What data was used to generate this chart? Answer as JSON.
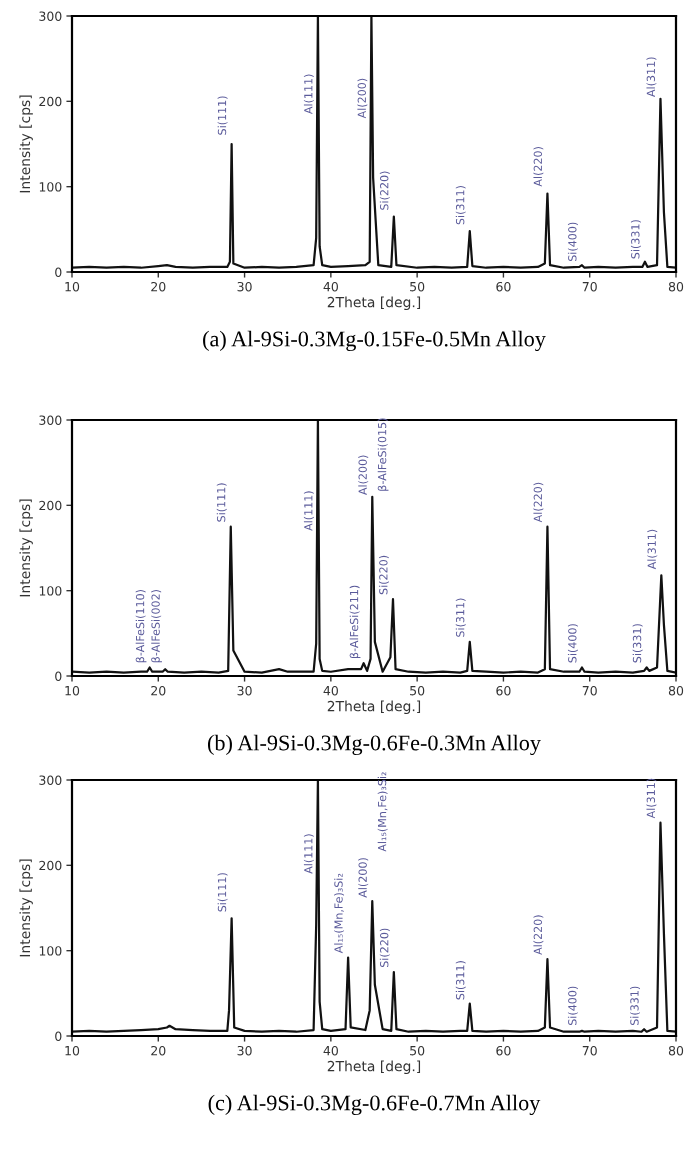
{
  "chart_data": [
    {
      "type": "line",
      "title": "(a) Al-9Si-0.3Mg-0.15Fe-0.5Mn Alloy",
      "xlabel": "2Theta [deg.]",
      "ylabel": "Intensity [cps]",
      "xlim": [
        10,
        80
      ],
      "ylim": [
        0,
        300
      ],
      "xticks": [
        10,
        20,
        30,
        40,
        50,
        60,
        70,
        80
      ],
      "yticks": [
        0,
        100,
        200,
        300
      ],
      "x": [
        10,
        12,
        14,
        16,
        18,
        20,
        21,
        22,
        24,
        26,
        28,
        28.3,
        28.5,
        28.7,
        30,
        32,
        34,
        36,
        38,
        38.3,
        38.5,
        38.7,
        39,
        40,
        42,
        44,
        44.5,
        44.7,
        44.9,
        45.5,
        47,
        47.3,
        47.6,
        50,
        52,
        54,
        55.8,
        56.1,
        56.4,
        58,
        60,
        62,
        64,
        64.8,
        65.1,
        65.4,
        67,
        68.8,
        69.1,
        69.4,
        71,
        73,
        75,
        76.1,
        76.4,
        76.7,
        77.8,
        78.2,
        78.6,
        79,
        80
      ],
      "series": [
        {
          "color": "#111111",
          "values": [
            5,
            6,
            5,
            6,
            5,
            7,
            8,
            6,
            5,
            6,
            6,
            12,
            150,
            10,
            5,
            6,
            5,
            6,
            8,
            40,
            300,
            30,
            8,
            6,
            7,
            8,
            12,
            300,
            110,
            8,
            6,
            65,
            8,
            5,
            6,
            5,
            6,
            48,
            7,
            5,
            6,
            5,
            6,
            10,
            92,
            8,
            5,
            6,
            8,
            5,
            6,
            5,
            6,
            6,
            12,
            6,
            8,
            203,
            70,
            6,
            5
          ]
        }
      ],
      "annotations": [
        {
          "text": "Si(111)",
          "x": 28.5,
          "y": 160
        },
        {
          "text": "Al(111)",
          "x": 38.5,
          "y": 185
        },
        {
          "text": "Al(200)",
          "x": 44.7,
          "y": 180
        },
        {
          "text": "Si(220)",
          "x": 47.3,
          "y": 72
        },
        {
          "text": "Si(311)",
          "x": 56.1,
          "y": 55
        },
        {
          "text": "Al(220)",
          "x": 65.1,
          "y": 100
        },
        {
          "text": "Si(400)",
          "x": 69.1,
          "y": 12
        },
        {
          "text": "Si(331)",
          "x": 76.4,
          "y": 15
        },
        {
          "text": "Al(311)",
          "x": 78.2,
          "y": 205
        }
      ]
    },
    {
      "type": "line",
      "title": "(b) Al-9Si-0.3Mg-0.6Fe-0.3Mn Alloy",
      "xlabel": "2Theta [deg.]",
      "ylabel": "Intensity [cps]",
      "xlim": [
        10,
        80
      ],
      "ylim": [
        0,
        300
      ],
      "xticks": [
        10,
        20,
        30,
        40,
        50,
        60,
        70,
        80
      ],
      "yticks": [
        0,
        100,
        200,
        300
      ],
      "x": [
        10,
        12,
        14,
        16,
        18,
        18.7,
        19,
        19.3,
        20.5,
        20.8,
        21.1,
        23,
        25,
        27,
        28.1,
        28.4,
        28.7,
        30,
        32,
        34,
        35,
        36,
        38,
        38.3,
        38.5,
        38.7,
        39,
        40,
        42,
        43.5,
        43.8,
        44.2,
        44.6,
        44.8,
        45.1,
        46,
        46.9,
        47.2,
        47.5,
        49,
        51,
        53,
        55,
        55.8,
        56.1,
        56.4,
        58,
        60,
        62,
        64,
        64.8,
        65.1,
        65.4,
        67,
        68.8,
        69.1,
        69.4,
        71,
        73,
        75,
        76.3,
        76.6,
        76.9,
        77.8,
        78.3,
        78.6,
        79,
        80
      ],
      "series": [
        {
          "color": "#111111",
          "values": [
            5,
            4,
            5,
            4,
            5,
            5,
            10,
            5,
            5,
            8,
            5,
            4,
            5,
            4,
            6,
            175,
            30,
            5,
            4,
            8,
            5,
            5,
            5,
            38,
            300,
            20,
            6,
            5,
            8,
            8,
            15,
            6,
            20,
            210,
            40,
            5,
            22,
            90,
            8,
            5,
            4,
            5,
            4,
            6,
            40,
            6,
            5,
            4,
            5,
            4,
            8,
            175,
            8,
            5,
            5,
            10,
            5,
            4,
            5,
            4,
            6,
            10,
            6,
            10,
            118,
            60,
            6,
            4
          ]
        }
      ],
      "annotations": [
        {
          "text": "β-AlFeSi(110)",
          "x": 19,
          "y": 15
        },
        {
          "text": "β-AlFeSi(002)",
          "x": 20.8,
          "y": 15
        },
        {
          "text": "Si(111)",
          "x": 28.4,
          "y": 180
        },
        {
          "text": "Al(111)",
          "x": 38.5,
          "y": 170
        },
        {
          "text": "β-AlFeSi(211)",
          "x": 43.8,
          "y": 20
        },
        {
          "text": "Al(200)",
          "x": 44.8,
          "y": 212
        },
        "β-AlFeSi(015)",
        {
          "text": "Si(220)",
          "x": 47.2,
          "y": 95
        },
        {
          "text": "Si(311)",
          "x": 56.1,
          "y": 45
        },
        {
          "text": "Al(220)",
          "x": 65.1,
          "y": 180
        },
        {
          "text": "Si(400)",
          "x": 69.1,
          "y": 15
        },
        {
          "text": "Si(331)",
          "x": 76.6,
          "y": 15
        },
        {
          "text": "Al(311)",
          "x": 78.3,
          "y": 125
        }
      ]
    },
    {
      "type": "line",
      "title": "(c) Al-9Si-0.3Mg-0.6Fe-0.7Mn Alloy",
      "xlabel": "2Theta [deg.]",
      "ylabel": "Intensity [cps]",
      "xlim": [
        10,
        80
      ],
      "ylim": [
        0,
        300
      ],
      "xticks": [
        10,
        20,
        30,
        40,
        50,
        60,
        70,
        80
      ],
      "yticks": [
        0,
        100,
        200,
        300
      ],
      "x": [
        10,
        12,
        14,
        16,
        18,
        20,
        21,
        21.3,
        22,
        24,
        26,
        28,
        28.2,
        28.5,
        28.8,
        30,
        32,
        34,
        36,
        38,
        38.3,
        38.5,
        38.7,
        39,
        40,
        41.7,
        42,
        42.3,
        44,
        44.5,
        44.8,
        45.1,
        46,
        47,
        47.3,
        47.6,
        49,
        51,
        53,
        55,
        55.8,
        56.1,
        56.4,
        58,
        60,
        62,
        64,
        64.8,
        65.1,
        65.4,
        67,
        68.8,
        69.1,
        69.4,
        71,
        73,
        75,
        76,
        76.3,
        76.6,
        77.8,
        78.2,
        78.6,
        79,
        80
      ],
      "series": [
        {
          "color": "#111111",
          "values": [
            5,
            6,
            5,
            6,
            7,
            8,
            10,
            12,
            8,
            7,
            6,
            6,
            30,
            138,
            10,
            6,
            5,
            6,
            5,
            7,
            130,
            300,
            40,
            8,
            6,
            8,
            92,
            10,
            7,
            30,
            158,
            60,
            8,
            6,
            75,
            8,
            5,
            6,
            5,
            6,
            6,
            38,
            6,
            5,
            6,
            5,
            6,
            10,
            90,
            10,
            5,
            5,
            6,
            5,
            6,
            5,
            6,
            5,
            8,
            5,
            10,
            250,
            120,
            6,
            5
          ]
        }
      ],
      "annotations": [
        {
          "text": "Si(111)",
          "x": 28.5,
          "y": 145
        },
        {
          "text": "Al(111)",
          "x": 38.5,
          "y": 190
        },
        {
          "text": "Al₁₅(Mn,Fe)₃Si₂",
          "x": 42,
          "y": 97
        },
        {
          "text": "Al(200)",
          "x": 44.8,
          "y": 162
        },
        "Al₁₅(Mn,Fe)₃Si₂",
        {
          "text": "Si(220)",
          "x": 47.3,
          "y": 80
        },
        {
          "text": "Si(311)",
          "x": 56.1,
          "y": 42
        },
        {
          "text": "Al(220)",
          "x": 65.1,
          "y": 95
        },
        {
          "text": "Si(400)",
          "x": 69.1,
          "y": 12
        },
        {
          "text": "Si(331)",
          "x": 76.3,
          "y": 12
        },
        {
          "text": "Al(311)",
          "x": 78.2,
          "y": 255
        }
      ]
    }
  ]
}
